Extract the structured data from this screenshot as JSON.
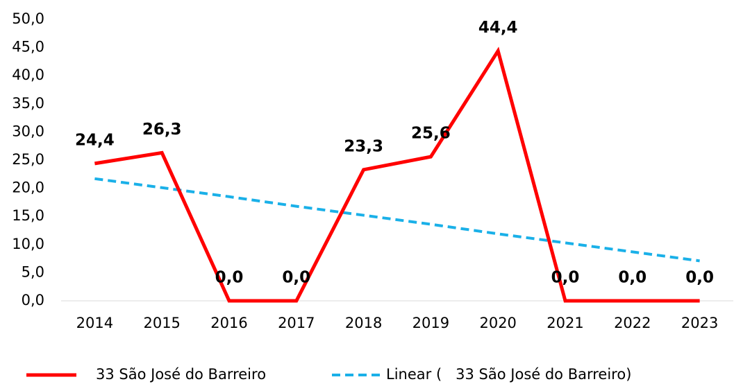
{
  "chart_data": {
    "type": "line",
    "categories": [
      "2014",
      "2015",
      "2016",
      "2017",
      "2018",
      "2019",
      "2020",
      "2021",
      "2022",
      "2023"
    ],
    "series": [
      {
        "name": "33 São José do Barreiro",
        "color": "#ff0000",
        "values": [
          24.4,
          26.3,
          0,
          0,
          23.3,
          25.6,
          44.4,
          0,
          0,
          0
        ],
        "value_labels": [
          "24,4",
          "26,3",
          "0,0",
          "0,0",
          "23,3",
          "25,6",
          "44,4",
          "0,0",
          "0,0",
          "0,0"
        ]
      },
      {
        "name": "Linear (   33 São José do Barreiro)",
        "color": "#1ab0e8",
        "dashed": true,
        "values": [
          21.7,
          20.1,
          18.5,
          16.8,
          15.2,
          13.6,
          11.9,
          10.3,
          8.7,
          7.1
        ]
      }
    ],
    "ylim": [
      0,
      50
    ],
    "yticks": [
      {
        "value": 0,
        "label": "0,0"
      },
      {
        "value": 5,
        "label": "5,0"
      },
      {
        "value": 10,
        "label": "10,0"
      },
      {
        "value": 15,
        "label": "15,0"
      },
      {
        "value": 20,
        "label": "20,0"
      },
      {
        "value": 25,
        "label": "25,0"
      },
      {
        "value": 30,
        "label": "30,0"
      },
      {
        "value": 35,
        "label": "35,0"
      },
      {
        "value": 40,
        "label": "40,0"
      },
      {
        "value": 45,
        "label": "45,0"
      },
      {
        "value": 50,
        "label": "50,0"
      }
    ],
    "legend": "bottom"
  }
}
